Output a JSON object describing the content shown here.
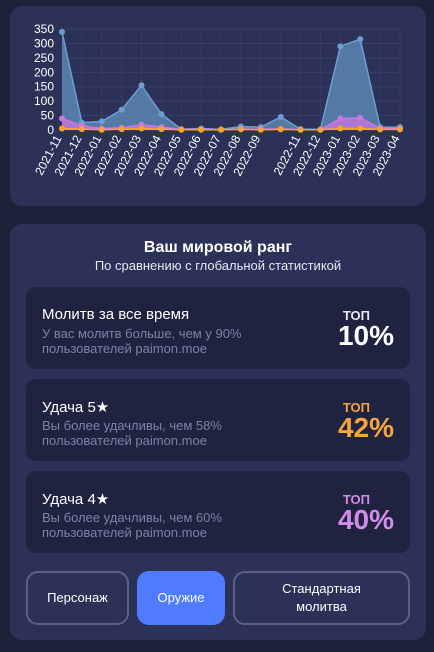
{
  "chart_data": {
    "type": "area",
    "x": [
      "2021-11",
      "2021-12",
      "2022-01",
      "2022-02",
      "2022-03",
      "2022-04",
      "2022-05",
      "2022-06",
      "2022-07",
      "2022-08",
      "2022-09",
      "2022-10",
      "2022-11",
      "2022-12",
      "2023-01",
      "2023-02",
      "2023-03",
      "2023-04"
    ],
    "tick_labels": [
      "2021-11",
      "2021-12",
      "2022-01",
      "2022-02",
      "2022-03",
      "2022-04",
      "2022-05",
      "2022-06",
      "2022-07",
      "2022-08",
      "2022-09",
      "2022-11",
      "2022-12",
      "2023-01",
      "2023-02",
      "2023-03",
      "2023-04"
    ],
    "tick_indices": [
      0,
      1,
      2,
      3,
      4,
      5,
      6,
      7,
      8,
      9,
      10,
      12,
      13,
      14,
      15,
      16,
      17
    ],
    "series": [
      {
        "values": [
          340,
          25,
          30,
          70,
          155,
          55,
          3,
          5,
          2,
          12,
          10,
          45,
          3,
          2,
          290,
          315,
          10,
          10
        ],
        "color": "#6b9fd0"
      },
      {
        "values": [
          40,
          15,
          5,
          8,
          18,
          10,
          2,
          2,
          1,
          3,
          2,
          4,
          1,
          1,
          40,
          42,
          5,
          5
        ],
        "color": "#c978e0"
      },
      {
        "values": [
          5,
          3,
          1,
          3,
          5,
          3,
          1,
          1,
          1,
          2,
          1,
          2,
          1,
          1,
          5,
          5,
          2,
          2
        ],
        "color": "#f5a623"
      }
    ],
    "y_ticks": [
      0,
      50,
      100,
      150,
      200,
      250,
      300,
      350
    ],
    "ylim": [
      0,
      350
    ],
    "grid": true
  },
  "rank": {
    "title": "Ваш мировой ранг",
    "subtitle": "По сравнению с глобальной статистикой",
    "stats": [
      {
        "name": "Молитв за все время",
        "desc": "У вас молитв больше, чем у 90% пользователей paimon.moe",
        "top_label": "ТОП",
        "percent": "10%",
        "color": "#ffffff",
        "label_color": "#e8e8f0"
      },
      {
        "name": "Удача 5★",
        "desc": "Вы более удачливы, чем 58% пользователей paimon.moe",
        "top_label": "ТОП",
        "percent": "42%",
        "color": "#f5a53a",
        "label_color": "#f5a53a"
      },
      {
        "name": "Удача 4★",
        "desc": "Вы более удачливы, чем 60% пользователей paimon.moe",
        "top_label": "ТОП",
        "percent": "40%",
        "color": "#d38ce8",
        "label_color": "#d38ce8"
      }
    ]
  },
  "tabs": [
    {
      "label": "Персонаж"
    },
    {
      "label": "Оружие"
    },
    {
      "label": "Стандартная молитва"
    }
  ],
  "colors": {
    "accent": "#4f7bff"
  }
}
